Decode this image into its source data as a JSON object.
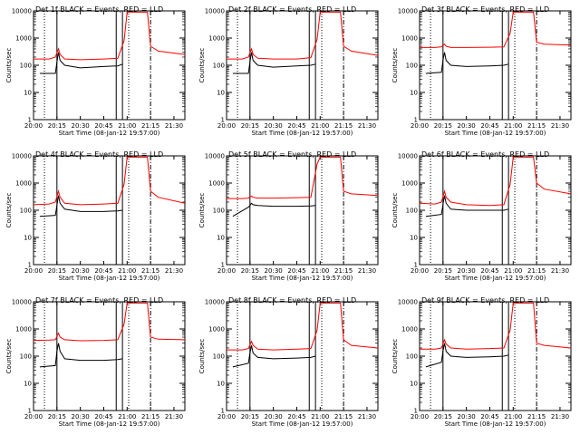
{
  "figure": {
    "xlabel": "Start Time (08-Jan-12 19:57:00)",
    "ylabel": "Counts/sec"
  },
  "chart_data": [
    {
      "type": "line",
      "title": "Det 1f BLACK = Events, RED = LLD",
      "xlabel": "Start Time (08-Jan-12 19:57:00)",
      "ylabel": "Counts/sec",
      "yscale": "log",
      "ylim": [
        1,
        10000
      ],
      "xlim": [
        "20:00",
        "21:37"
      ],
      "xticks": [
        "20:00",
        "20:15",
        "20:30",
        "20:45",
        "21:00",
        "21:15",
        "21:30"
      ],
      "yticks": [
        "1",
        "10",
        "100",
        "1000",
        "10000"
      ],
      "vlines_solid": [
        "20:15",
        "20:53",
        "20:57"
      ],
      "vlines_dotted": [
        "20:07",
        "21:01"
      ],
      "vlines_dashdot": [
        "21:15"
      ],
      "series": [
        {
          "color": "#ff0000",
          "x": [
            "20:00",
            "20:10",
            "20:14",
            "20:16",
            "20:17",
            "20:20",
            "20:30",
            "20:45",
            "20:54",
            "20:58",
            "21:00",
            "21:13",
            "21:15",
            "21:20",
            "21:37"
          ],
          "y": [
            170,
            170,
            200,
            400,
            250,
            170,
            160,
            170,
            180,
            800,
            9000,
            9000,
            500,
            330,
            250
          ]
        },
        {
          "color": "#000000",
          "x": [
            "20:04",
            "20:14",
            "20:15",
            "20:16",
            "20:17",
            "20:20",
            "20:30",
            "20:45",
            "20:54",
            "20:57"
          ],
          "y": [
            50,
            50,
            130,
            300,
            150,
            100,
            80,
            90,
            95,
            110
          ]
        }
      ]
    },
    {
      "type": "line",
      "title": "Det 2f BLACK = Events, RED = LLD",
      "xlabel": "Start Time (08-Jan-12 19:57:00)",
      "ylabel": "Counts/sec",
      "yscale": "log",
      "ylim": [
        1,
        10000
      ],
      "xlim": [
        "20:00",
        "21:37"
      ],
      "xticks": [
        "20:00",
        "20:15",
        "20:30",
        "20:45",
        "21:00",
        "21:15",
        "21:30"
      ],
      "yticks": [
        "1",
        "10",
        "100",
        "1000",
        "10000"
      ],
      "vlines_solid": [
        "20:15",
        "20:53",
        "20:57"
      ],
      "vlines_dotted": [
        "20:07",
        "21:01"
      ],
      "vlines_dashdot": [
        "21:15"
      ],
      "series": [
        {
          "color": "#ff0000",
          "x": [
            "20:00",
            "20:10",
            "20:14",
            "20:16",
            "20:17",
            "20:20",
            "20:30",
            "20:45",
            "20:54",
            "20:58",
            "21:00",
            "21:13",
            "21:15",
            "21:20",
            "21:37"
          ],
          "y": [
            170,
            170,
            200,
            400,
            250,
            180,
            170,
            170,
            190,
            900,
            9000,
            9000,
            500,
            330,
            230
          ]
        },
        {
          "color": "#000000",
          "x": [
            "20:04",
            "20:14",
            "20:15",
            "20:16",
            "20:17",
            "20:20",
            "20:30",
            "20:45",
            "20:54",
            "20:57"
          ],
          "y": [
            50,
            50,
            130,
            300,
            150,
            100,
            85,
            95,
            100,
            110
          ]
        }
      ]
    },
    {
      "type": "line",
      "title": "Det 3f BLACK = Events, RED = LLD",
      "xlabel": "Start Time (08-Jan-12 19:57:00)",
      "ylabel": "Counts/sec",
      "yscale": "log",
      "ylim": [
        1,
        10000
      ],
      "xlim": [
        "20:00",
        "21:37"
      ],
      "xticks": [
        "20:00",
        "20:15",
        "20:30",
        "20:45",
        "21:00",
        "21:15",
        "21:30"
      ],
      "yticks": [
        "1",
        "10",
        "100",
        "1000",
        "10000"
      ],
      "vlines_solid": [
        "20:15",
        "20:53",
        "20:57"
      ],
      "vlines_dotted": [
        "20:07",
        "21:01"
      ],
      "vlines_dashdot": [
        "21:15"
      ],
      "series": [
        {
          "color": "#ff0000",
          "x": [
            "20:00",
            "20:10",
            "20:14",
            "20:16",
            "20:17",
            "20:20",
            "20:30",
            "20:45",
            "20:54",
            "20:58",
            "21:00",
            "21:13",
            "21:15",
            "21:20",
            "21:37"
          ],
          "y": [
            450,
            450,
            480,
            600,
            500,
            450,
            450,
            460,
            470,
            1500,
            9000,
            9000,
            700,
            600,
            550
          ]
        },
        {
          "color": "#000000",
          "x": [
            "20:04",
            "20:14",
            "20:15",
            "20:16",
            "20:17",
            "20:20",
            "20:30",
            "20:45",
            "20:54",
            "20:57"
          ],
          "y": [
            50,
            55,
            150,
            300,
            150,
            100,
            90,
            95,
            100,
            110
          ]
        }
      ]
    },
    {
      "type": "line",
      "title": "Det 4f BLACK = Events, RED = LLD",
      "xlabel": "Start Time (08-Jan-12 19:57:00)",
      "ylabel": "Counts/sec",
      "yscale": "log",
      "ylim": [
        1,
        10000
      ],
      "xlim": [
        "20:00",
        "21:37"
      ],
      "xticks": [
        "20:00",
        "20:15",
        "20:30",
        "20:45",
        "21:00",
        "21:15",
        "21:30"
      ],
      "yticks": [
        "1",
        "10",
        "100",
        "1000",
        "10000"
      ],
      "vlines_solid": [
        "20:15",
        "20:53",
        "20:57"
      ],
      "vlines_dotted": [
        "20:07",
        "21:01"
      ],
      "vlines_dashdot": [
        "21:15"
      ],
      "series": [
        {
          "color": "#ff0000",
          "x": [
            "20:00",
            "20:10",
            "20:14",
            "20:16",
            "20:17",
            "20:20",
            "20:30",
            "20:45",
            "20:54",
            "20:58",
            "21:00",
            "21:13",
            "21:15",
            "21:20",
            "21:37"
          ],
          "y": [
            160,
            170,
            200,
            500,
            300,
            180,
            160,
            170,
            180,
            900,
            9000,
            9000,
            500,
            300,
            180
          ]
        },
        {
          "color": "#000000",
          "x": [
            "20:04",
            "20:14",
            "20:15",
            "20:16",
            "20:17",
            "20:20",
            "20:30",
            "20:45",
            "20:54",
            "20:57"
          ],
          "y": [
            60,
            65,
            150,
            350,
            180,
            110,
            90,
            90,
            95,
            100
          ]
        }
      ]
    },
    {
      "type": "line",
      "title": "Det 5f BLACK = Events, RED = LLD",
      "xlabel": "Start Time (08-Jan-12 19:57:00)",
      "ylabel": "Counts/sec",
      "yscale": "log",
      "ylim": [
        1,
        10000
      ],
      "xlim": [
        "20:00",
        "21:37"
      ],
      "xticks": [
        "20:00",
        "20:15",
        "20:30",
        "20:45",
        "21:00",
        "21:15",
        "21:30"
      ],
      "yticks": [
        "1",
        "10",
        "100",
        "1000",
        "10000"
      ],
      "vlines_solid": [
        "20:15",
        "20:53",
        "20:57"
      ],
      "vlines_dotted": [
        "20:07",
        "21:01"
      ],
      "vlines_dashdot": [
        "21:15"
      ],
      "series": [
        {
          "color": "#ff0000",
          "x": [
            "20:00",
            "20:10",
            "20:14",
            "20:16",
            "20:17",
            "20:20",
            "20:30",
            "20:45",
            "20:54",
            "20:58",
            "21:00",
            "21:13",
            "21:15",
            "21:20",
            "21:37"
          ],
          "y": [
            270,
            270,
            280,
            330,
            300,
            280,
            280,
            290,
            300,
            5000,
            9000,
            9000,
            500,
            400,
            350
          ]
        },
        {
          "color": "#000000",
          "x": [
            "20:04",
            "20:14",
            "20:15",
            "20:16",
            "20:17",
            "20:20",
            "20:30",
            "20:45",
            "20:54",
            "20:57"
          ],
          "y": [
            60,
            130,
            150,
            180,
            160,
            150,
            140,
            140,
            145,
            150
          ]
        }
      ]
    },
    {
      "type": "line",
      "title": "Det 6f BLACK = Events, RED = LLD",
      "xlabel": "Start Time (08-Jan-12 19:57:00)",
      "ylabel": "Counts/sec",
      "yscale": "log",
      "ylim": [
        1,
        10000
      ],
      "xlim": [
        "20:00",
        "21:37"
      ],
      "xticks": [
        "20:00",
        "20:15",
        "20:30",
        "20:45",
        "21:00",
        "21:15",
        "21:30"
      ],
      "yticks": [
        "1",
        "10",
        "100",
        "1000",
        "10000"
      ],
      "vlines_solid": [
        "20:15",
        "20:53",
        "20:57"
      ],
      "vlines_dotted": [
        "20:07",
        "21:01"
      ],
      "vlines_dashdot": [
        "21:15"
      ],
      "series": [
        {
          "color": "#ff0000",
          "x": [
            "20:00",
            "20:10",
            "20:14",
            "20:16",
            "20:17",
            "20:20",
            "20:30",
            "20:45",
            "20:54",
            "20:58",
            "21:00",
            "21:13",
            "21:15",
            "21:20",
            "21:37"
          ],
          "y": [
            180,
            170,
            200,
            500,
            300,
            200,
            160,
            150,
            160,
            900,
            9000,
            9000,
            1000,
            600,
            400
          ]
        },
        {
          "color": "#000000",
          "x": [
            "20:04",
            "20:14",
            "20:15",
            "20:16",
            "20:17",
            "20:20",
            "20:30",
            "20:45",
            "20:54",
            "20:57"
          ],
          "y": [
            60,
            70,
            160,
            350,
            180,
            110,
            100,
            100,
            100,
            110
          ]
        }
      ]
    },
    {
      "type": "line",
      "title": "Det 7f BLACK = Events, RED = LLD",
      "xlabel": "Start Time (08-Jan-12 19:57:00)",
      "ylabel": "Counts/sec",
      "yscale": "log",
      "ylim": [
        1,
        10000
      ],
      "xlim": [
        "20:00",
        "21:37"
      ],
      "xticks": [
        "20:00",
        "20:15",
        "20:30",
        "20:45",
        "21:00",
        "21:15",
        "21:30"
      ],
      "yticks": [
        "1",
        "10",
        "100",
        "1000",
        "10000"
      ],
      "vlines_solid": [
        "20:15",
        "20:53",
        "20:57"
      ],
      "vlines_dotted": [
        "20:07",
        "21:01"
      ],
      "vlines_dashdot": [
        "21:15"
      ],
      "series": [
        {
          "color": "#ff0000",
          "x": [
            "20:00",
            "20:10",
            "20:14",
            "20:16",
            "20:17",
            "20:20",
            "20:30",
            "20:45",
            "20:54",
            "20:58",
            "21:00",
            "21:13",
            "21:15",
            "21:20",
            "21:37"
          ],
          "y": [
            380,
            390,
            400,
            700,
            500,
            400,
            370,
            380,
            400,
            1500,
            9000,
            9000,
            500,
            420,
            400
          ]
        },
        {
          "color": "#000000",
          "x": [
            "20:04",
            "20:14",
            "20:15",
            "20:16",
            "20:17",
            "20:20",
            "20:30",
            "20:45",
            "20:54",
            "20:57"
          ],
          "y": [
            40,
            45,
            150,
            300,
            150,
            80,
            70,
            70,
            75,
            80
          ]
        }
      ]
    },
    {
      "type": "line",
      "title": "Det 8f BLACK = Events, RED = LLD",
      "xlabel": "Start Time (08-Jan-12 19:57:00)",
      "ylabel": "Counts/sec",
      "yscale": "log",
      "ylim": [
        1,
        10000
      ],
      "xlim": [
        "20:00",
        "21:37"
      ],
      "xticks": [
        "20:00",
        "20:15",
        "20:30",
        "20:45",
        "21:00",
        "21:15",
        "21:30"
      ],
      "yticks": [
        "1",
        "10",
        "100",
        "1000",
        "10000"
      ],
      "vlines_solid": [
        "20:15",
        "20:53",
        "20:57"
      ],
      "vlines_dotted": [
        "20:07",
        "21:01"
      ],
      "vlines_dashdot": [
        "21:15"
      ],
      "series": [
        {
          "color": "#ff0000",
          "x": [
            "20:00",
            "20:10",
            "20:14",
            "20:16",
            "20:17",
            "20:20",
            "20:30",
            "20:45",
            "20:54",
            "20:58",
            "21:00",
            "21:13",
            "21:15",
            "21:20",
            "21:37"
          ],
          "y": [
            170,
            170,
            190,
            350,
            250,
            180,
            170,
            180,
            190,
            900,
            9000,
            9000,
            400,
            250,
            200
          ]
        },
        {
          "color": "#000000",
          "x": [
            "20:04",
            "20:14",
            "20:15",
            "20:16",
            "20:17",
            "20:20",
            "20:30",
            "20:45",
            "20:54",
            "20:57"
          ],
          "y": [
            40,
            55,
            130,
            250,
            130,
            90,
            80,
            85,
            90,
            100
          ]
        }
      ]
    },
    {
      "type": "line",
      "title": "Det 9f BLACK = Events, RED = LLD",
      "xlabel": "Start Time (08-Jan-12 19:57:00)",
      "ylabel": "Counts/sec",
      "yscale": "log",
      "ylim": [
        1,
        10000
      ],
      "xlim": [
        "20:00",
        "21:37"
      ],
      "xticks": [
        "20:00",
        "20:15",
        "20:30",
        "20:45",
        "21:00",
        "21:15",
        "21:30"
      ],
      "yticks": [
        "1",
        "10",
        "100",
        "1000",
        "10000"
      ],
      "vlines_solid": [
        "20:15",
        "20:53",
        "20:57"
      ],
      "vlines_dotted": [
        "20:07",
        "21:01"
      ],
      "vlines_dashdot": [
        "21:15"
      ],
      "series": [
        {
          "color": "#ff0000",
          "x": [
            "20:00",
            "20:10",
            "20:14",
            "20:16",
            "20:17",
            "20:20",
            "20:30",
            "20:45",
            "20:54",
            "20:58",
            "21:00",
            "21:13",
            "21:15",
            "21:20",
            "21:37"
          ],
          "y": [
            180,
            180,
            200,
            400,
            280,
            200,
            180,
            190,
            200,
            900,
            9000,
            9000,
            300,
            250,
            200
          ]
        },
        {
          "color": "#000000",
          "x": [
            "20:04",
            "20:14",
            "20:15",
            "20:16",
            "20:17",
            "20:20",
            "20:30",
            "20:45",
            "20:54",
            "20:57"
          ],
          "y": [
            40,
            60,
            150,
            300,
            150,
            100,
            90,
            95,
            100,
            110
          ]
        }
      ]
    }
  ]
}
